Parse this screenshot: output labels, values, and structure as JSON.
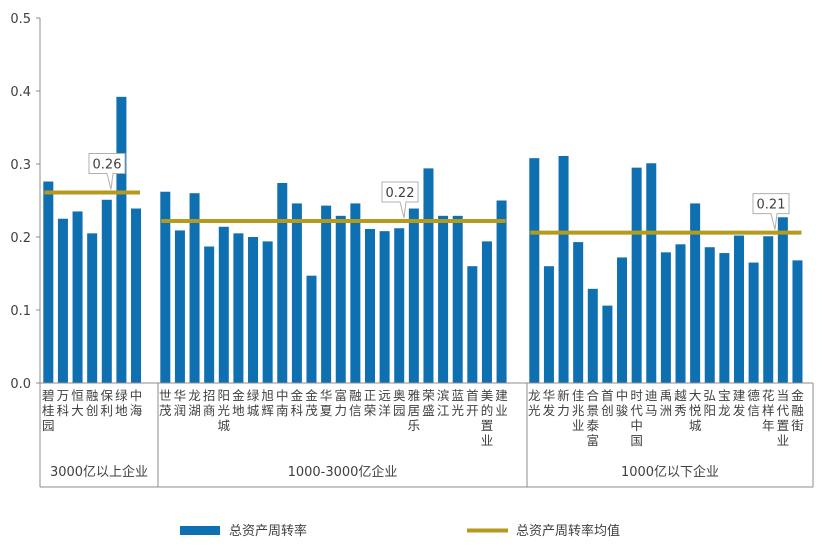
{
  "chart_data": {
    "type": "bar",
    "ylim": [
      0,
      0.5
    ],
    "yticks": [
      "0.0",
      "0.1",
      "0.2",
      "0.3",
      "0.4",
      "0.5"
    ],
    "grid": false,
    "legend_position": "bottom",
    "colors": {
      "bar": "#0e6fb1",
      "mean": "#b49b1e",
      "axis": "#8c8c8c"
    },
    "series": [
      {
        "name": "总资产周转率",
        "kind": "bar"
      },
      {
        "name": "总资产周转率均值",
        "kind": "line"
      }
    ],
    "groups": [
      {
        "label": "3000亿以上企业",
        "mean": 0.261,
        "mean_label": "0.26",
        "categories": [
          "碧桂园",
          "万科",
          "恒大",
          "融创",
          "保利",
          "绿地",
          "中海"
        ],
        "values": [
          0.276,
          0.225,
          0.235,
          0.205,
          0.251,
          0.392,
          0.239
        ]
      },
      {
        "label": "1000-3000亿企业",
        "mean": 0.222,
        "mean_label": "0.22",
        "categories": [
          "世茂",
          "华润",
          "龙湖",
          "招商",
          "阳光城",
          "金地",
          "绿城",
          "旭辉",
          "中南",
          "金科",
          "金茂",
          "华夏",
          "富力",
          "融信",
          "正荣",
          "远洋",
          "奥园",
          "雅居乐",
          "荣盛",
          "滨江",
          "蓝光",
          "首开",
          "美的置业",
          "建业"
        ],
        "values": [
          0.262,
          0.209,
          0.26,
          0.187,
          0.214,
          0.205,
          0.2,
          0.194,
          0.274,
          0.246,
          0.147,
          0.243,
          0.229,
          0.246,
          0.211,
          0.208,
          0.212,
          0.239,
          0.294,
          0.229,
          0.229,
          0.16,
          0.194,
          0.25
        ]
      },
      {
        "label": "1000亿以下企业",
        "mean": 0.206,
        "mean_label": "0.21",
        "categories": [
          "龙光",
          "华发",
          "新力",
          "佳兆业",
          "合景泰富",
          "首创",
          "中骏",
          "时代中国",
          "迪马",
          "禹洲",
          "越秀",
          "大悦城",
          "弘阳",
          "宝龙",
          "建发",
          "德信",
          "花样年",
          "当代置业",
          "金融街"
        ],
        "values": [
          0.308,
          0.16,
          0.311,
          0.193,
          0.129,
          0.106,
          0.172,
          0.295,
          0.301,
          0.179,
          0.19,
          0.246,
          0.186,
          0.178,
          0.202,
          0.165,
          0.201,
          0.227,
          0.168
        ]
      }
    ]
  }
}
